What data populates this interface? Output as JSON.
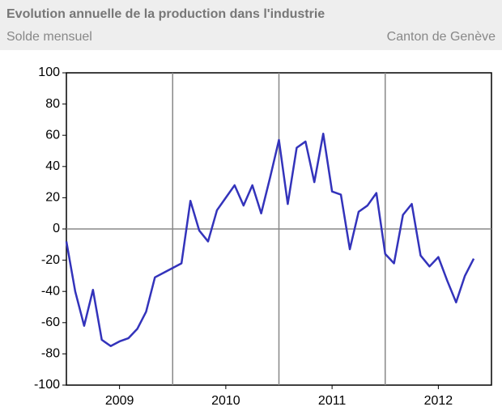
{
  "chart_data": {
    "type": "line",
    "title": "Evolution annuelle de la production dans l'industrie",
    "subtitle": "Solde mensuel",
    "source": "Canton de Genève",
    "x": [
      2009,
      2009.083,
      2009.167,
      2009.25,
      2009.333,
      2009.417,
      2009.5,
      2009.583,
      2009.667,
      2009.75,
      2009.833,
      2009.917,
      2010,
      2010.083,
      2010.167,
      2010.25,
      2010.333,
      2010.417,
      2010.5,
      2010.583,
      2010.667,
      2010.75,
      2010.833,
      2010.917,
      2011,
      2011.083,
      2011.167,
      2011.25,
      2011.333,
      2011.417,
      2011.5,
      2011.583,
      2011.667,
      2011.75,
      2011.833,
      2011.917,
      2012,
      2012.083,
      2012.167,
      2012.25,
      2012.333,
      2012.417,
      2012.5,
      2012.583,
      2012.667,
      2012.75,
      2012.833
    ],
    "series": [
      {
        "name": "Solde mensuel",
        "color": "#3333bb",
        "values": [
          -8,
          -40,
          -62,
          -39,
          -71,
          -75,
          -72,
          -70,
          -64,
          -53,
          -31,
          -28,
          -25,
          -22,
          18,
          -1,
          -8,
          12,
          20,
          28,
          15,
          28,
          10,
          33,
          57,
          16,
          52,
          56,
          30,
          61,
          24,
          22,
          -13,
          11,
          15,
          23,
          -16,
          -22,
          9,
          16,
          -17,
          -24,
          -18,
          -33,
          -47,
          -30,
          -19
        ]
      }
    ],
    "xlim": [
      2009,
      2013
    ],
    "xticks": [
      {
        "value": 2009.5,
        "label": "2009"
      },
      {
        "value": 2010.5,
        "label": "2010"
      },
      {
        "value": 2011.5,
        "label": "2011"
      },
      {
        "value": 2012.5,
        "label": "2012"
      }
    ],
    "xgrid": [
      2010,
      2011,
      2012
    ],
    "ylim": [
      -100,
      100
    ],
    "yticks": [
      -100,
      -80,
      -60,
      -40,
      -20,
      0,
      20,
      40,
      60,
      80,
      100
    ]
  }
}
